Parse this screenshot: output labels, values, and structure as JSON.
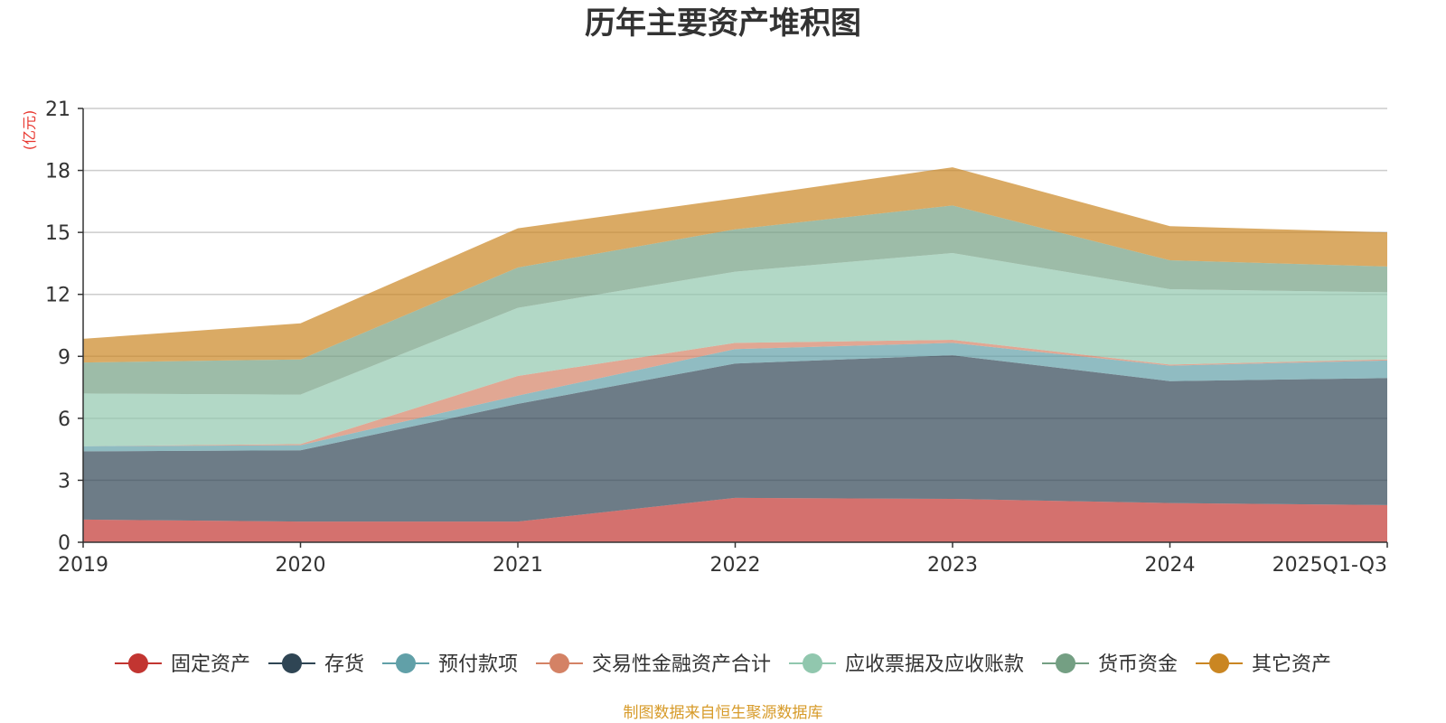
{
  "chart_data": {
    "type": "area",
    "stacked": true,
    "title": "历年主要资产堆积图",
    "unit_label": "(亿元)",
    "categories": [
      "2019",
      "2020",
      "2021",
      "2022",
      "2023",
      "2024",
      "2025Q1-Q3"
    ],
    "ylim": [
      0,
      21
    ],
    "yticks": [
      0,
      3,
      6,
      9,
      12,
      15,
      18,
      21
    ],
    "grid": true,
    "legend_position": "bottom",
    "series": [
      {
        "name": "固定资产",
        "color": "#c23531",
        "values": [
          1.1,
          1.0,
          1.0,
          2.15,
          2.1,
          1.9,
          1.8
        ]
      },
      {
        "name": "存货",
        "color": "#2f4554",
        "values": [
          3.3,
          3.45,
          5.7,
          6.5,
          6.95,
          5.9,
          6.15
        ]
      },
      {
        "name": "预付款项",
        "color": "#61a0a8",
        "values": [
          0.25,
          0.25,
          0.4,
          0.7,
          0.6,
          0.75,
          0.85
        ]
      },
      {
        "name": "交易性金融资产合计",
        "color": "#d48265",
        "values": [
          0.0,
          0.05,
          0.95,
          0.3,
          0.15,
          0.05,
          0.05
        ]
      },
      {
        "name": "应收票据及应收账款",
        "color": "#91c7ae",
        "values": [
          2.55,
          2.4,
          3.3,
          3.45,
          4.2,
          3.65,
          3.25
        ]
      },
      {
        "name": "货币资金",
        "color": "#749f83",
        "values": [
          1.5,
          1.7,
          1.95,
          2.05,
          2.3,
          1.4,
          1.25
        ]
      },
      {
        "name": "其它资产",
        "color": "#ca8622",
        "values": [
          1.15,
          1.75,
          1.9,
          1.5,
          1.85,
          1.65,
          1.65
        ]
      }
    ],
    "source_note": "制图数据来自恒生聚源数据库"
  }
}
